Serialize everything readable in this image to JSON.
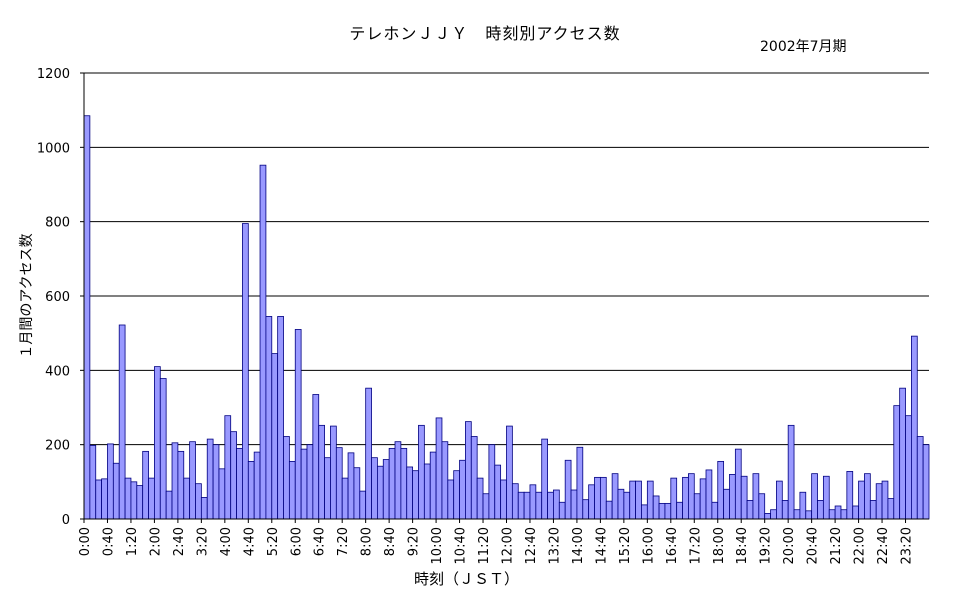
{
  "chart_data": {
    "type": "bar",
    "title": "テレホンＪＪＹ　時刻別アクセス数",
    "subtitle": "2002年7月期",
    "xlabel": "時刻（ＪＳＴ）",
    "ylabel": "１月間のアクセス数",
    "ylim": [
      0,
      1200
    ],
    "yticks": [
      0,
      200,
      400,
      600,
      800,
      1000,
      1200
    ],
    "grid": true,
    "bar_color": "#9999FF",
    "bar_edge_color": "#000080",
    "tick_labels": [
      "0:00",
      "0:40",
      "1:20",
      "2:00",
      "2:40",
      "3:20",
      "4:00",
      "4:40",
      "5:20",
      "6:00",
      "6:40",
      "7:20",
      "8:00",
      "8:40",
      "9:20",
      "10:00",
      "10:40",
      "11:20",
      "12:00",
      "12:40",
      "13:20",
      "14:00",
      "14:40",
      "15:20",
      "16:00",
      "16:40",
      "17:20",
      "18:00",
      "18:40",
      "19:20",
      "20:00",
      "20:40",
      "21:20",
      "22:00",
      "22:40",
      "23:20"
    ],
    "tick_every": 4,
    "bin_minutes": 10,
    "values": [
      1085,
      198,
      105,
      108,
      202,
      150,
      522,
      110,
      100,
      90,
      182,
      110,
      410,
      378,
      75,
      205,
      182,
      110,
      208,
      95,
      58,
      215,
      200,
      135,
      278,
      235,
      190,
      795,
      155,
      180,
      952,
      545,
      445,
      545,
      222,
      155,
      510,
      188,
      200,
      335,
      252,
      165,
      250,
      192,
      110,
      178,
      138,
      75,
      352,
      165,
      142,
      160,
      190,
      208,
      190,
      140,
      130,
      252,
      148,
      180,
      272,
      208,
      105,
      130,
      158,
      262,
      222,
      110,
      68,
      200,
      145,
      105,
      250,
      95,
      72,
      72,
      92,
      72,
      215,
      72,
      78,
      45,
      158,
      78,
      193,
      52,
      92,
      112,
      112,
      48,
      122,
      80,
      72,
      102,
      102,
      38,
      102,
      62,
      42,
      42,
      110,
      45,
      112,
      122,
      68,
      108,
      132,
      45,
      155,
      80,
      120,
      188,
      115,
      50,
      122,
      68,
      15,
      25,
      102,
      50,
      252,
      25,
      72,
      22,
      122,
      50,
      115,
      25,
      35,
      25,
      128,
      35,
      102,
      122,
      50,
      95,
      102,
      55,
      305,
      352,
      278,
      492,
      222,
      200
    ]
  }
}
